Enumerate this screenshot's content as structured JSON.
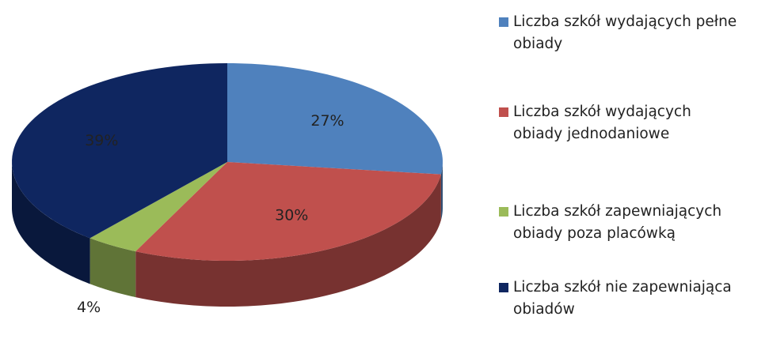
{
  "chart_data": {
    "type": "pie",
    "categories": [
      "Liczba szkół wydających pełne obiady",
      "Liczba szkół wydających obiady jednodaniowe",
      "Liczba szkół zapewniających obiady poza placówką",
      "Liczba szkół nie zapewniająca obiadów"
    ],
    "values": [
      27,
      30,
      4,
      39
    ],
    "value_labels": [
      "27%",
      "30%",
      "4%",
      "39%"
    ],
    "colors": [
      "#4f81bd",
      "#c0504d",
      "#9bbb59",
      "#0f2660"
    ],
    "legend": "right"
  }
}
